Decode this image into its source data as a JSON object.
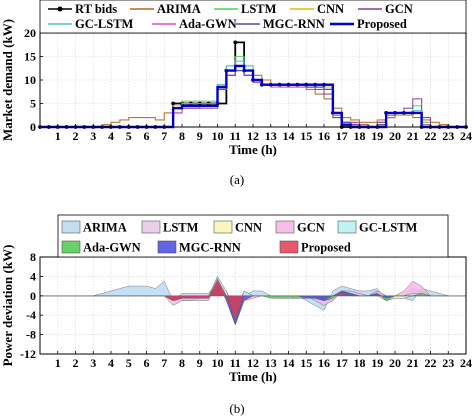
{
  "chart_data": [
    {
      "type": "line",
      "caption": "(a)",
      "xlabel": "Time (h)",
      "ylabel": "Market demand (kW)",
      "xlim": [
        0,
        24
      ],
      "ylim": [
        0,
        20
      ],
      "xticks": [
        "1",
        "2",
        "3",
        "4",
        "5",
        "6",
        "7",
        "8",
        "9",
        "10",
        "11",
        "12",
        "13",
        "14",
        "15",
        "16",
        "17",
        "18",
        "19",
        "20",
        "21",
        "22",
        "23",
        "24"
      ],
      "yticks": [
        "0",
        "5",
        "10",
        "15",
        "20"
      ],
      "grid": true,
      "legend_position": "top",
      "legend": [
        "RT bids",
        "ARIMA",
        "LSTM",
        "CNN",
        "GCN",
        "GC-LSTM",
        "Ada-GWN",
        "MGC-RNN",
        "Proposed"
      ],
      "x": [
        0,
        0.5,
        1,
        1.5,
        2,
        2.5,
        3,
        3.5,
        4,
        4.5,
        5,
        5.5,
        6,
        6.5,
        7,
        7.5,
        8,
        8.5,
        9,
        9.5,
        10,
        10.5,
        11,
        11.5,
        12,
        12.5,
        13,
        13.5,
        14,
        14.5,
        15,
        15.5,
        16,
        16.5,
        17,
        17.5,
        18,
        18.5,
        19,
        19.5,
        20,
        20.5,
        21,
        21.5,
        22,
        22.5,
        23,
        23.5,
        24
      ],
      "series": [
        {
          "name": "RT bids",
          "color": "#000000",
          "values": [
            0,
            0,
            0,
            0,
            0,
            0,
            0,
            0,
            0,
            0,
            0,
            0,
            0,
            0,
            0,
            5,
            5,
            5,
            5,
            5,
            5,
            12,
            18,
            12,
            10,
            9,
            9,
            9,
            9,
            9,
            9,
            9,
            9,
            3,
            0,
            0,
            0,
            0,
            0,
            3,
            3,
            3,
            3,
            0,
            0,
            0,
            0,
            0,
            0
          ]
        },
        {
          "name": "ARIMA",
          "color": "#b5651d",
          "values": [
            0,
            0,
            0,
            0,
            0,
            0,
            0,
            0.5,
            1,
            1.5,
            2,
            2,
            2,
            1.5,
            3,
            4,
            4,
            4,
            4.5,
            5,
            9,
            12,
            13,
            12,
            11,
            10,
            9,
            9,
            9,
            9,
            8,
            7,
            6,
            4,
            2,
            1.5,
            1,
            1,
            1.5,
            2,
            2.5,
            2.5,
            2,
            1.5,
            1,
            0.5,
            0,
            0,
            0
          ]
        },
        {
          "name": "LSTM",
          "color": "#4cd44c",
          "values": [
            0,
            0,
            0,
            0,
            0,
            0,
            0,
            0,
            0,
            0,
            0,
            0,
            0,
            0,
            0,
            4,
            5.5,
            5.5,
            5.5,
            5.5,
            8,
            13,
            15,
            13,
            10,
            9,
            9,
            8.5,
            8.5,
            8.5,
            8.5,
            8.5,
            8,
            2,
            1,
            0,
            0,
            0,
            1,
            3,
            3,
            3,
            4.5,
            1,
            0,
            0,
            0,
            0,
            0
          ]
        },
        {
          "name": "CNN",
          "color": "#e6b800",
          "values": [
            0,
            0,
            0,
            0,
            0,
            0,
            0,
            0,
            0,
            0,
            0,
            0,
            0,
            0,
            0,
            4.5,
            5,
            5,
            5,
            5,
            8,
            12,
            13,
            12,
            10,
            9,
            9,
            9,
            9,
            8.5,
            8.5,
            8.5,
            8.5,
            3,
            1,
            0.5,
            0,
            0,
            0,
            2,
            2.5,
            2.5,
            3,
            0,
            0,
            0,
            0,
            0,
            0
          ]
        },
        {
          "name": "GCN",
          "color": "#8b3a8b",
          "values": [
            0,
            0,
            0,
            0,
            0,
            0,
            0,
            0,
            0,
            0,
            0,
            0,
            0,
            0,
            0,
            3,
            4,
            4,
            4,
            4,
            8,
            11,
            12,
            11,
            9.5,
            9,
            9,
            9,
            9,
            9,
            9,
            8,
            7,
            2,
            1,
            1,
            0.5,
            0,
            1,
            3,
            3,
            4,
            6,
            2,
            0,
            0,
            0,
            0,
            0
          ]
        },
        {
          "name": "GC-LSTM",
          "color": "#4cc4c4",
          "values": [
            0,
            0,
            0,
            0,
            0,
            0,
            0,
            0,
            0,
            0,
            0,
            0,
            0,
            0,
            0,
            4,
            5,
            5,
            5,
            5,
            9,
            13,
            14,
            13,
            10,
            9,
            9,
            9,
            9,
            9,
            8.5,
            8.5,
            8,
            2.5,
            1,
            0,
            0,
            0,
            0.5,
            2,
            3,
            3,
            3.5,
            0.5,
            0,
            0,
            0,
            0,
            0
          ]
        },
        {
          "name": "Ada-GWN",
          "color": "#d44cd4",
          "values": [
            0,
            0,
            0,
            0,
            0,
            0,
            0,
            0,
            0,
            0,
            0,
            0,
            0,
            0,
            0,
            4,
            4.5,
            5,
            5,
            5,
            8,
            12,
            12,
            12,
            10,
            9,
            8.5,
            8.5,
            8.5,
            8.5,
            8.5,
            8.5,
            8,
            2.5,
            1,
            0.5,
            0,
            0,
            0.5,
            2,
            3,
            3,
            3,
            0.5,
            0,
            0,
            0,
            0,
            0
          ]
        },
        {
          "name": "MGC-RNN",
          "color": "#5050a0",
          "values": [
            0,
            0,
            0,
            0,
            0,
            0,
            0,
            0,
            0,
            0,
            0,
            0,
            0,
            0,
            0,
            4,
            4.5,
            4.5,
            4.5,
            4.5,
            8,
            11,
            12,
            11,
            10,
            9,
            9,
            9,
            9,
            9,
            8.5,
            8.5,
            8,
            3,
            1,
            0.5,
            0,
            0,
            0.5,
            2.5,
            3,
            3,
            3,
            0,
            0,
            0,
            0,
            0,
            0
          ]
        },
        {
          "name": "Proposed",
          "color": "#0000cc",
          "values": [
            0,
            0,
            0,
            0,
            0,
            0,
            0,
            0,
            0,
            0,
            0,
            0,
            0,
            0,
            0,
            4,
            4.5,
            4.5,
            4.5,
            4.5,
            8.5,
            12,
            13,
            12,
            10,
            9,
            9,
            9,
            9,
            9,
            9,
            9,
            9,
            3,
            0.5,
            0,
            0,
            0,
            0,
            3,
            3,
            3,
            3,
            0,
            0,
            0,
            0,
            0,
            0
          ]
        }
      ]
    },
    {
      "type": "area",
      "caption": "(b)",
      "xlabel": "Time (h)",
      "ylabel": "Power deviation (kW)",
      "xlim": [
        0,
        24
      ],
      "ylim": [
        -12,
        8
      ],
      "xticks": [
        "1",
        "2",
        "3",
        "4",
        "5",
        "6",
        "7",
        "8",
        "9",
        "10",
        "11",
        "12",
        "13",
        "14",
        "15",
        "16",
        "17",
        "18",
        "19",
        "20",
        "21",
        "22",
        "23",
        "24"
      ],
      "yticks": [
        "8",
        "4",
        "0",
        "-4",
        "-8",
        "-12"
      ],
      "grid": true,
      "legend_position": "top",
      "legend": [
        "ARIMA",
        "LSTM",
        "CNN",
        "GCN",
        "GC-LSTM",
        "Ada-GWN",
        "MGC-RNN",
        "Proposed"
      ],
      "x": [
        0,
        0.5,
        1,
        1.5,
        2,
        2.5,
        3,
        3.5,
        4,
        4.5,
        5,
        5.5,
        6,
        6.5,
        7,
        7.5,
        8,
        8.5,
        9,
        9.5,
        10,
        10.5,
        11,
        11.5,
        12,
        12.5,
        13,
        13.5,
        14,
        14.5,
        15,
        15.5,
        16,
        16.5,
        17,
        17.5,
        18,
        18.5,
        19,
        19.5,
        20,
        20.5,
        21,
        21.5,
        22,
        22.5,
        23,
        23.5,
        24
      ],
      "series": [
        {
          "name": "ARIMA",
          "color": "#b8d8f0",
          "values": [
            0,
            0,
            0,
            0,
            0,
            0,
            0,
            0.5,
            1,
            1.5,
            2,
            2,
            2,
            1.5,
            3,
            -1,
            -1,
            -1,
            -0.5,
            0,
            4,
            0,
            -5,
            0,
            1,
            1,
            0,
            0,
            0,
            0,
            -1,
            -2,
            -3,
            1,
            2,
            1.5,
            1,
            1,
            1.5,
            -1,
            -0.5,
            -0.5,
            -1,
            1.5,
            1,
            0.5,
            0,
            0,
            0
          ]
        },
        {
          "name": "LSTM",
          "color": "#e4c8e8",
          "values": [
            0,
            0,
            0,
            0,
            0,
            0,
            0,
            0,
            0,
            0,
            0,
            0,
            0,
            0,
            0,
            -1,
            0.5,
            0.5,
            0.5,
            0.5,
            3,
            1,
            -3,
            1,
            0,
            0,
            0,
            -0.5,
            -0.5,
            -0.5,
            -0.5,
            -0.5,
            -1,
            -1,
            1,
            0,
            0,
            0,
            1,
            0,
            0,
            0,
            1.5,
            1,
            0,
            0,
            0,
            0,
            0
          ]
        },
        {
          "name": "CNN",
          "color": "#f8f4b4",
          "values": [
            0,
            0,
            0,
            0,
            0,
            0,
            0,
            0,
            0,
            0,
            0,
            0,
            0,
            0,
            0,
            -0.5,
            0,
            0,
            0,
            0,
            3,
            0,
            -5,
            0,
            0,
            0,
            0,
            0,
            0,
            -0.5,
            -0.5,
            -0.5,
            -0.5,
            0,
            1,
            0.5,
            0,
            0,
            0,
            -1,
            -0.5,
            -0.5,
            0,
            0,
            0,
            0,
            0,
            0,
            0
          ]
        },
        {
          "name": "GCN",
          "color": "#f4b4e8",
          "values": [
            0,
            0,
            0,
            0,
            0,
            0,
            0,
            0,
            0,
            0,
            0,
            0,
            0,
            0,
            0,
            -2,
            -1,
            -1,
            -1,
            -1,
            3,
            -1,
            -6,
            -1,
            -0.5,
            0,
            0,
            0,
            0,
            0,
            0,
            -1,
            -2,
            -1,
            1,
            1,
            0.5,
            0,
            1,
            0,
            0,
            1,
            3,
            2,
            0,
            0,
            0,
            0,
            0
          ]
        },
        {
          "name": "GC-LSTM",
          "color": "#b4f0f0",
          "values": [
            0,
            0,
            0,
            0,
            0,
            0,
            0,
            0,
            0,
            0,
            0,
            0,
            0,
            0,
            0,
            -1,
            0,
            0,
            0,
            0,
            4,
            1,
            -4,
            1,
            0,
            0,
            0,
            0,
            0,
            0,
            -0.5,
            -0.5,
            -1,
            -0.5,
            1,
            0,
            0,
            0,
            0.5,
            -1,
            0,
            0,
            0.5,
            0.5,
            0,
            0,
            0,
            0,
            0
          ]
        },
        {
          "name": "Ada-GWN",
          "color": "#50c850",
          "values": [
            0,
            0,
            0,
            0,
            0,
            0,
            0,
            0,
            0,
            0,
            0,
            0,
            0,
            0,
            0,
            -1,
            -0.5,
            0,
            0,
            0,
            3,
            0,
            -6,
            0,
            0,
            0,
            -0.5,
            -0.5,
            -0.5,
            -0.5,
            -0.5,
            -0.5,
            -1,
            -0.5,
            1,
            0.5,
            0,
            0,
            0.5,
            -1,
            0,
            0,
            0,
            0.5,
            0,
            0,
            0,
            0,
            0
          ]
        },
        {
          "name": "MGC-RNN",
          "color": "#4848e0",
          "values": [
            0,
            0,
            0,
            0,
            0,
            0,
            0,
            0,
            0,
            0,
            0,
            0,
            0,
            0,
            0,
            -1,
            -0.5,
            -0.5,
            -0.5,
            -0.5,
            3,
            -1,
            -6,
            -1,
            0,
            0,
            0,
            0,
            0,
            0,
            -0.5,
            -0.5,
            -1,
            0,
            1,
            0.5,
            0,
            0,
            0.5,
            -0.5,
            0,
            0,
            0,
            0,
            0,
            0,
            0,
            0,
            0
          ]
        },
        {
          "name": "Proposed",
          "color": "#e03c50",
          "values": [
            0,
            0,
            0,
            0,
            0,
            0,
            0,
            0,
            0,
            0,
            0,
            0,
            0,
            0,
            0,
            -1,
            -0.5,
            -0.5,
            -0.5,
            -0.5,
            3.5,
            0,
            -5,
            0,
            0,
            0,
            0,
            0,
            0,
            0,
            0,
            0,
            0,
            0,
            0.5,
            0,
            0,
            0,
            0,
            0,
            0,
            0,
            0,
            0,
            0,
            0,
            0,
            0,
            0
          ]
        }
      ]
    }
  ]
}
